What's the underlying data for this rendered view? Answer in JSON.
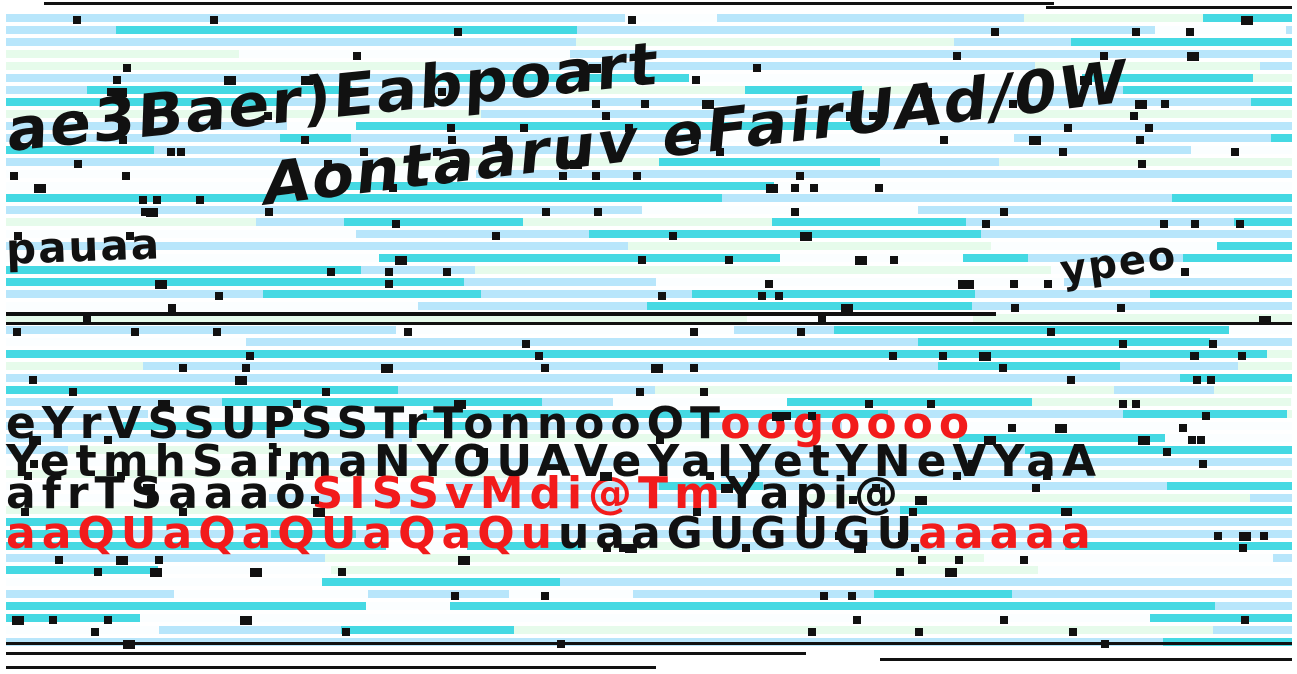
{
  "header": {
    "line1": "ae3Baer)Eabpoart",
    "line2": "Aontaaruv eFairUAd/0W",
    "line3": "pauaa",
    "line4": "ypeo"
  },
  "table": {
    "row1": {
      "a": "eYrVSSUPSSTrTonnooOT",
      "b": "oogoooo"
    },
    "row2": {
      "a": "YetmhSaimaNYOUAVeYaIYetYNeVYaA",
      "b": ""
    },
    "row3": {
      "a": "afrTSaaao",
      "b": "SISSvMdi@Tm",
      "c": "Yapi@"
    },
    "row4": {
      "a": "aaQUaQaQUaQaQu",
      "b": "uaaGUGUGU",
      "c": "aaaaa"
    }
  },
  "colors": {
    "band_dark": "#45d9e3",
    "band_light": "#b8e6fb",
    "band_mint": "#e6fbeb",
    "band_white": "#fbfeff",
    "ink": "#111111",
    "accent_red": "#f21b1b"
  }
}
